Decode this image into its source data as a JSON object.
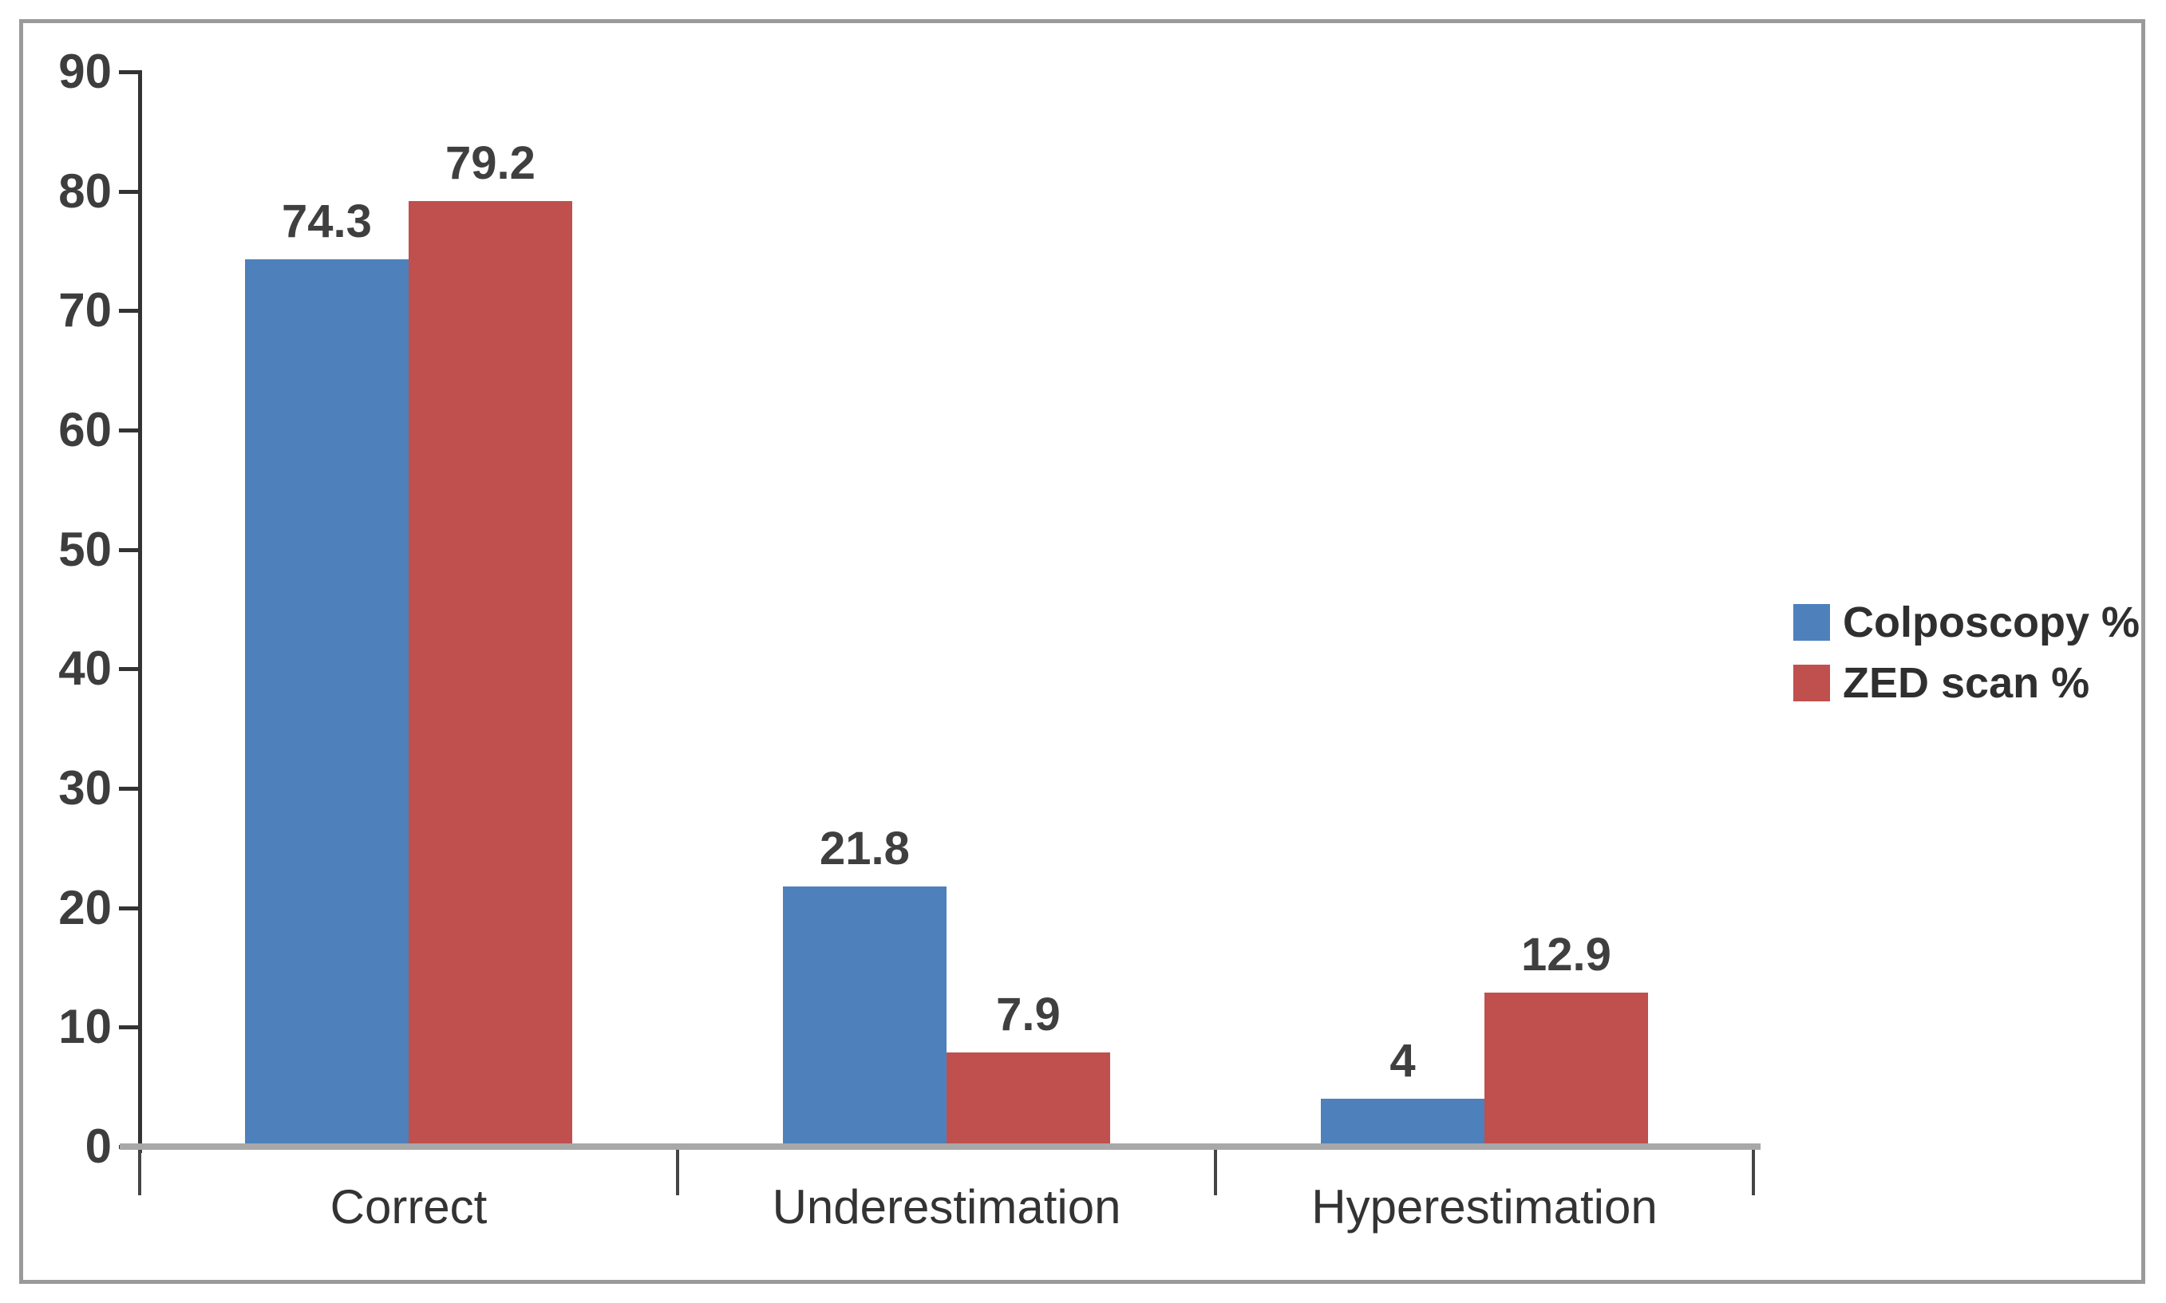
{
  "chart_data": {
    "type": "bar",
    "title": "",
    "xlabel": "",
    "ylabel": "",
    "categories": [
      "Correct",
      "Underestimation",
      "Hyperestimation"
    ],
    "series": [
      {
        "name": "Colposcopy %",
        "color": "#4e80bc",
        "values": [
          74.3,
          21.8,
          4
        ]
      },
      {
        "name": "ZED scan %",
        "color": "#c0504d",
        "values": [
          79.2,
          7.9,
          12.9
        ]
      }
    ],
    "value_labels": [
      [
        "74.3",
        "21.8",
        "4"
      ],
      [
        "79.2",
        "7.9",
        "12.9"
      ]
    ],
    "ylim": [
      0,
      90
    ],
    "yticks": [
      "0",
      "10",
      "20",
      "30",
      "40",
      "50",
      "60",
      "70",
      "80",
      "90"
    ],
    "grid": false,
    "legend_position": "right",
    "data_labels": true
  },
  "frame": {
    "border_color": "#9a9a9a",
    "x_axis_color": "#a8a8a8",
    "y_axis_color": "#333333"
  }
}
